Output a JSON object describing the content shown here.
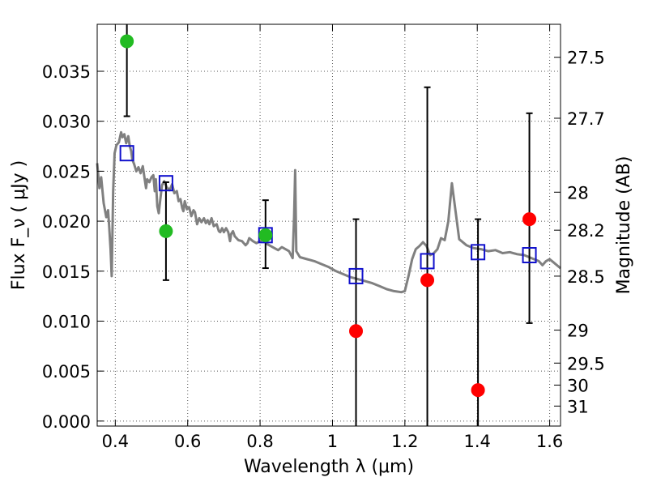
{
  "chart_data": {
    "type": "scatter",
    "xlabel": "Wavelength  λ (μm)",
    "ylabel": "Flux  F_ν  ( μJy )",
    "ylabel_right": "Magnitude (AB)",
    "xlim": [
      0.35,
      1.63
    ],
    "ylim": [
      -0.0005,
      0.0397
    ],
    "grid": true,
    "x_ticks": [
      0.4,
      0.6,
      0.8,
      1.0,
      1.2,
      1.4,
      1.6
    ],
    "x_tick_labels": [
      "0.4",
      "0.6",
      "0.8",
      "1",
      "1.2",
      "1.4",
      "1.6"
    ],
    "y_ticks": [
      0.0,
      0.005,
      0.01,
      0.015,
      0.02,
      0.025,
      0.03,
      0.035
    ],
    "y_tick_labels": [
      "0.000",
      "0.005",
      "0.010",
      "0.015",
      "0.020",
      "0.025",
      "0.030",
      "0.035"
    ],
    "right_ticks": [
      {
        "label": "27.5",
        "flux": 0.0364
      },
      {
        "label": "27.7",
        "flux": 0.0303
      },
      {
        "label": "28",
        "flux": 0.0229
      },
      {
        "label": "28.2",
        "flux": 0.0191
      },
      {
        "label": "28.5",
        "flux": 0.0145
      },
      {
        "label": "29",
        "flux": 0.0091
      },
      {
        "label": "29.5",
        "flux": 0.0058
      },
      {
        "label": "30",
        "flux": 0.0036
      },
      {
        "label": "31",
        "flux": 0.0015
      }
    ],
    "series": [
      {
        "kind": "line",
        "color": "#808080",
        "points": [
          [
            0.35,
            0.0258
          ],
          [
            0.356,
            0.0233
          ],
          [
            0.361,
            0.0244
          ],
          [
            0.368,
            0.0218
          ],
          [
            0.375,
            0.0204
          ],
          [
            0.38,
            0.0211
          ],
          [
            0.383,
            0.0196
          ],
          [
            0.387,
            0.0172
          ],
          [
            0.39,
            0.0145
          ],
          [
            0.394,
            0.023
          ],
          [
            0.398,
            0.0268
          ],
          [
            0.403,
            0.0276
          ],
          [
            0.41,
            0.0279
          ],
          [
            0.416,
            0.0289
          ],
          [
            0.42,
            0.0284
          ],
          [
            0.425,
            0.0287
          ],
          [
            0.43,
            0.0278
          ],
          [
            0.436,
            0.0285
          ],
          [
            0.44,
            0.0275
          ],
          [
            0.444,
            0.027
          ],
          [
            0.447,
            0.0262
          ],
          [
            0.452,
            0.0257
          ],
          [
            0.458,
            0.025
          ],
          [
            0.464,
            0.0254
          ],
          [
            0.47,
            0.0248
          ],
          [
            0.476,
            0.0255
          ],
          [
            0.48,
            0.0245
          ],
          [
            0.485,
            0.0233
          ],
          [
            0.488,
            0.0242
          ],
          [
            0.494,
            0.0239
          ],
          [
            0.5,
            0.0244
          ],
          [
            0.505,
            0.0246
          ],
          [
            0.509,
            0.023
          ],
          [
            0.512,
            0.0242
          ],
          [
            0.516,
            0.0215
          ],
          [
            0.52,
            0.0208
          ],
          [
            0.524,
            0.0221
          ],
          [
            0.529,
            0.0236
          ],
          [
            0.535,
            0.024
          ],
          [
            0.542,
            0.0234
          ],
          [
            0.55,
            0.0231
          ],
          [
            0.557,
            0.0237
          ],
          [
            0.563,
            0.0228
          ],
          [
            0.57,
            0.023
          ],
          [
            0.575,
            0.022
          ],
          [
            0.58,
            0.0222
          ],
          [
            0.585,
            0.0213
          ],
          [
            0.588,
            0.021
          ],
          [
            0.592,
            0.022
          ],
          [
            0.598,
            0.0212
          ],
          [
            0.604,
            0.0214
          ],
          [
            0.61,
            0.0205
          ],
          [
            0.616,
            0.0211
          ],
          [
            0.62,
            0.0209
          ],
          [
            0.626,
            0.0197
          ],
          [
            0.632,
            0.0203
          ],
          [
            0.638,
            0.0199
          ],
          [
            0.645,
            0.0203
          ],
          [
            0.65,
            0.0198
          ],
          [
            0.655,
            0.0201
          ],
          [
            0.66,
            0.0197
          ],
          [
            0.666,
            0.0203
          ],
          [
            0.672,
            0.0195
          ],
          [
            0.68,
            0.0197
          ],
          [
            0.686,
            0.019
          ],
          [
            0.69,
            0.0189
          ],
          [
            0.695,
            0.0193
          ],
          [
            0.7,
            0.0189
          ],
          [
            0.706,
            0.0193
          ],
          [
            0.712,
            0.0189
          ],
          [
            0.717,
            0.018
          ],
          [
            0.72,
            0.0187
          ],
          [
            0.725,
            0.019
          ],
          [
            0.73,
            0.0185
          ],
          [
            0.74,
            0.0181
          ],
          [
            0.75,
            0.018
          ],
          [
            0.76,
            0.0176
          ],
          [
            0.765,
            0.0178
          ],
          [
            0.77,
            0.0183
          ],
          [
            0.78,
            0.018
          ],
          [
            0.79,
            0.0178
          ],
          [
            0.8,
            0.018
          ],
          [
            0.81,
            0.0182
          ],
          [
            0.82,
            0.0177
          ],
          [
            0.83,
            0.0175
          ],
          [
            0.84,
            0.0173
          ],
          [
            0.85,
            0.0171
          ],
          [
            0.86,
            0.0174
          ],
          [
            0.87,
            0.0172
          ],
          [
            0.88,
            0.017
          ],
          [
            0.89,
            0.0163
          ],
          [
            0.894,
            0.0205
          ],
          [
            0.897,
            0.0251
          ],
          [
            0.9,
            0.017
          ],
          [
            0.91,
            0.0164
          ],
          [
            0.93,
            0.0162
          ],
          [
            0.95,
            0.016
          ],
          [
            0.97,
            0.0157
          ],
          [
            0.99,
            0.0154
          ],
          [
            1.01,
            0.015
          ],
          [
            1.03,
            0.0147
          ],
          [
            1.05,
            0.0144
          ],
          [
            1.07,
            0.0142
          ],
          [
            1.09,
            0.014
          ],
          [
            1.11,
            0.0138
          ],
          [
            1.13,
            0.0135
          ],
          [
            1.15,
            0.0132
          ],
          [
            1.17,
            0.013
          ],
          [
            1.19,
            0.0129
          ],
          [
            1.2,
            0.013
          ],
          [
            1.21,
            0.0145
          ],
          [
            1.22,
            0.0162
          ],
          [
            1.23,
            0.0172
          ],
          [
            1.24,
            0.0175
          ],
          [
            1.25,
            0.0179
          ],
          [
            1.26,
            0.0175
          ],
          [
            1.27,
            0.0166
          ],
          [
            1.28,
            0.0168
          ],
          [
            1.29,
            0.0172
          ],
          [
            1.3,
            0.0183
          ],
          [
            1.31,
            0.0181
          ],
          [
            1.32,
            0.02
          ],
          [
            1.33,
            0.0238
          ],
          [
            1.34,
            0.021
          ],
          [
            1.35,
            0.0182
          ],
          [
            1.37,
            0.0176
          ],
          [
            1.39,
            0.0173
          ],
          [
            1.41,
            0.0172
          ],
          [
            1.43,
            0.017
          ],
          [
            1.45,
            0.0171
          ],
          [
            1.47,
            0.0168
          ],
          [
            1.49,
            0.0169
          ],
          [
            1.51,
            0.0167
          ],
          [
            1.53,
            0.0166
          ],
          [
            1.55,
            0.0163
          ],
          [
            1.57,
            0.016
          ],
          [
            1.58,
            0.0156
          ],
          [
            1.59,
            0.016
          ],
          [
            1.6,
            0.0162
          ],
          [
            1.61,
            0.0159
          ],
          [
            1.63,
            0.0153
          ]
        ]
      },
      {
        "kind": "markers",
        "marker": "square-open",
        "color": "#1010cc",
        "points": [
          [
            0.432,
            0.0268
          ],
          [
            0.54,
            0.0238
          ],
          [
            0.815,
            0.0186
          ],
          [
            1.065,
            0.0145
          ],
          [
            1.262,
            0.016
          ],
          [
            1.402,
            0.0169
          ],
          [
            1.544,
            0.0166
          ]
        ]
      },
      {
        "kind": "markers",
        "marker": "circle",
        "color": "#22bb22",
        "points": [
          [
            0.432,
            0.038,
            0.0305,
            0.0397
          ],
          [
            0.54,
            0.019,
            0.0141,
            0.0239
          ],
          [
            0.815,
            0.0186,
            0.0153,
            0.0221
          ]
        ]
      },
      {
        "kind": "markers",
        "marker": "circle",
        "color": "#ff0000",
        "points": [
          [
            1.065,
            0.009,
            -0.0005,
            0.0202
          ],
          [
            1.262,
            0.0141,
            -0.0005,
            0.0334
          ],
          [
            1.402,
            0.0031,
            -0.0005,
            0.0202
          ],
          [
            1.544,
            0.0202,
            0.0098,
            0.0308
          ]
        ]
      }
    ]
  }
}
